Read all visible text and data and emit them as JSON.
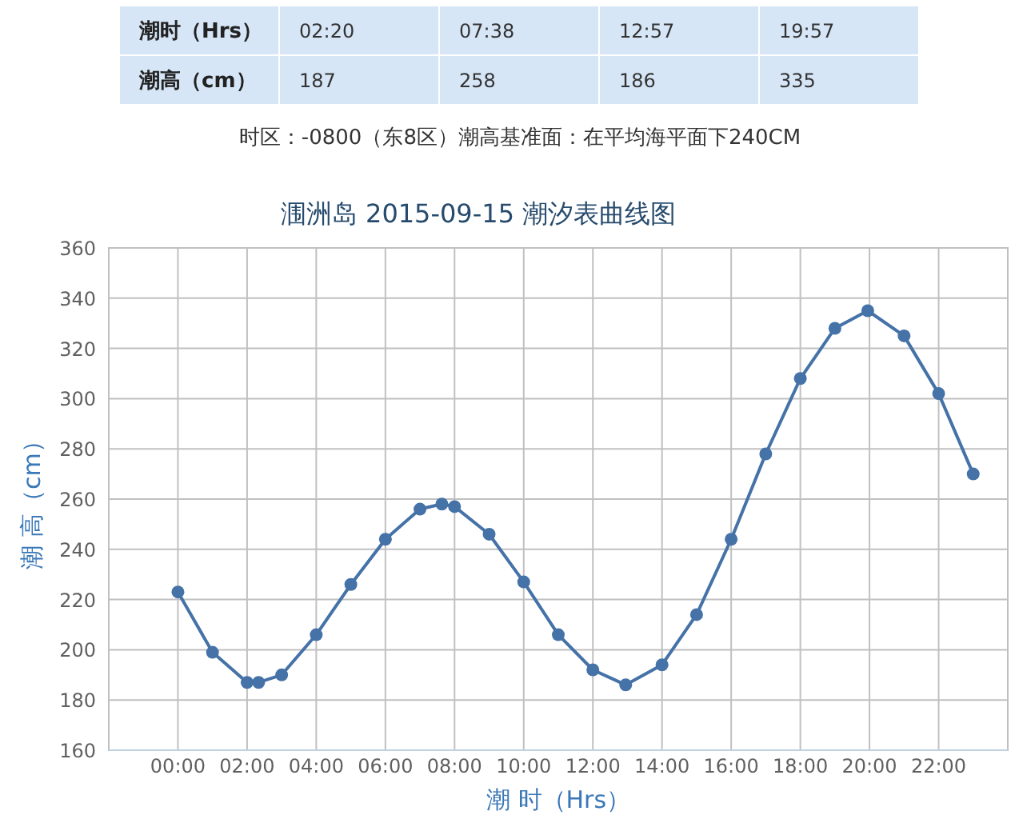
{
  "chart_data": [
    {
      "type": "other",
      "xlabel": "潮时（Hrs）",
      "ylabel": "潮高（cm）",
      "categories": [
        "02:20",
        "07:38",
        "12:57",
        "19:57"
      ],
      "values": [
        187,
        258,
        186,
        335
      ],
      "data_labels": true,
      "annotations": [
        "时区：-0800（东8区）潮高基准面：在平均海平面下240CM"
      ]
    },
    {
      "type": "line",
      "title": "涠洲岛 2015-09-15 潮汐表曲线图",
      "xlabel": "潮 时（Hrs）",
      "ylabel": "潮 高（cm）",
      "x": [
        0,
        1,
        2,
        2.333,
        3,
        4,
        5,
        6,
        7,
        7.633,
        8,
        9,
        10,
        11,
        12,
        12.95,
        14,
        15,
        16,
        17,
        18,
        19,
        19.95,
        21,
        22,
        23
      ],
      "series": [
        {
          "color": "#4572a7",
          "values": [
            223,
            199,
            187,
            187,
            190,
            206,
            226,
            244,
            256,
            258,
            257,
            246,
            227,
            206,
            192,
            186,
            194,
            214,
            244,
            278,
            308,
            328,
            335,
            325,
            302,
            270
          ]
        }
      ],
      "xlim": [
        -2,
        24
      ],
      "ylim": [
        160,
        360
      ],
      "xticks": [
        {
          "value": 0,
          "label": "00:00"
        },
        {
          "value": 2,
          "label": "02:00"
        },
        {
          "value": 4,
          "label": "04:00"
        },
        {
          "value": 6,
          "label": "06:00"
        },
        {
          "value": 8,
          "label": "08:00"
        },
        {
          "value": 10,
          "label": "10:00"
        },
        {
          "value": 12,
          "label": "12:00"
        },
        {
          "value": 14,
          "label": "14:00"
        },
        {
          "value": 16,
          "label": "16:00"
        },
        {
          "value": 18,
          "label": "18:00"
        },
        {
          "value": 20,
          "label": "20:00"
        },
        {
          "value": 22,
          "label": "22:00"
        }
      ],
      "yticks": [
        160,
        180,
        200,
        220,
        240,
        260,
        280,
        300,
        320,
        340,
        360
      ],
      "grid": true,
      "marker": "circle"
    }
  ]
}
